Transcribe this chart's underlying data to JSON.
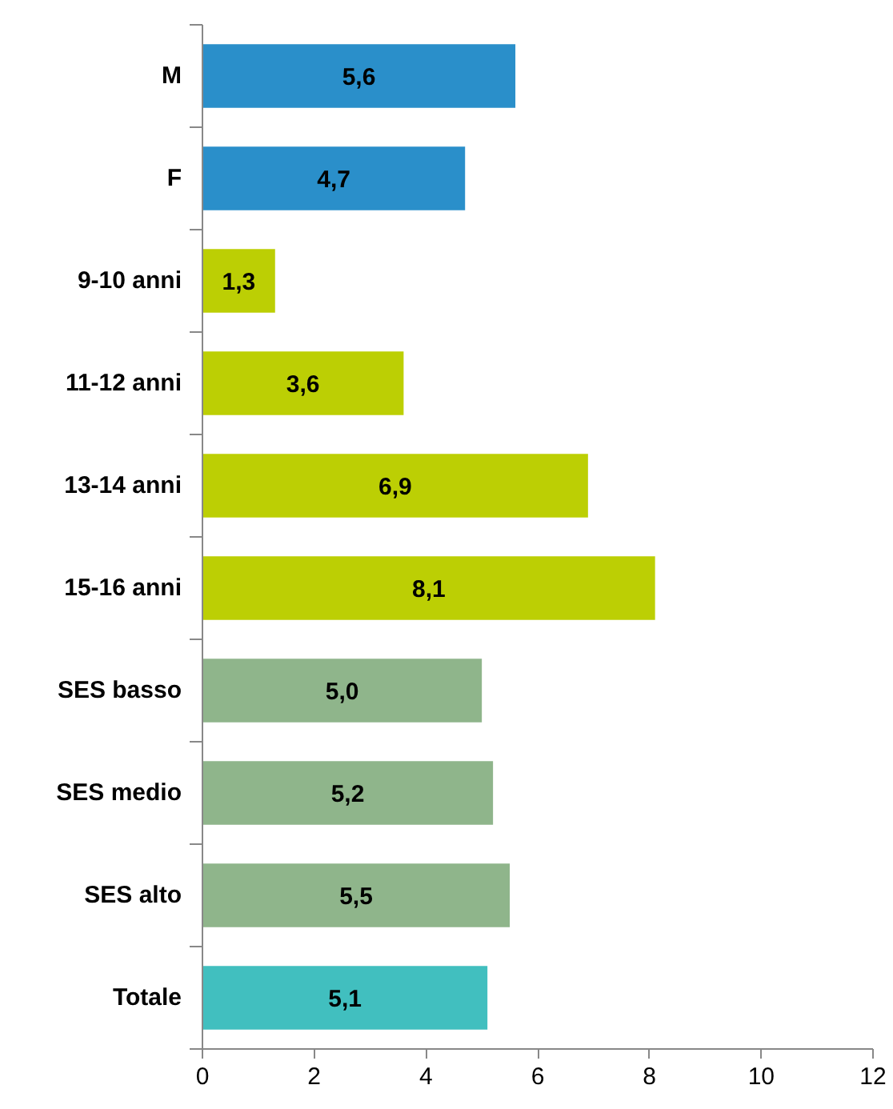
{
  "chart_data": {
    "type": "bar",
    "orientation": "horizontal",
    "categories": [
      "M",
      "F",
      "9-10 anni",
      "11-12 anni",
      "13-14 anni",
      "15-16 anni",
      "SES basso",
      "SES medio",
      "SES alto",
      "Totale"
    ],
    "values": [
      5.6,
      4.7,
      1.3,
      3.6,
      6.9,
      8.1,
      5.0,
      5.2,
      5.5,
      5.1
    ],
    "value_labels": [
      "5,6",
      "4,7",
      "1,3",
      "3,6",
      "6,9",
      "8,1",
      "5,0",
      "5,2",
      "5,5",
      "5,1"
    ],
    "colors": [
      "#2a8fca",
      "#2a8fca",
      "#bccf04",
      "#bccf04",
      "#bccf04",
      "#bccf04",
      "#8fb58b",
      "#8fb58b",
      "#8fb58b",
      "#41bfbf"
    ],
    "xlim": [
      0,
      12
    ],
    "xticks": [
      0,
      2,
      4,
      6,
      8,
      10,
      12
    ],
    "grid": false
  }
}
